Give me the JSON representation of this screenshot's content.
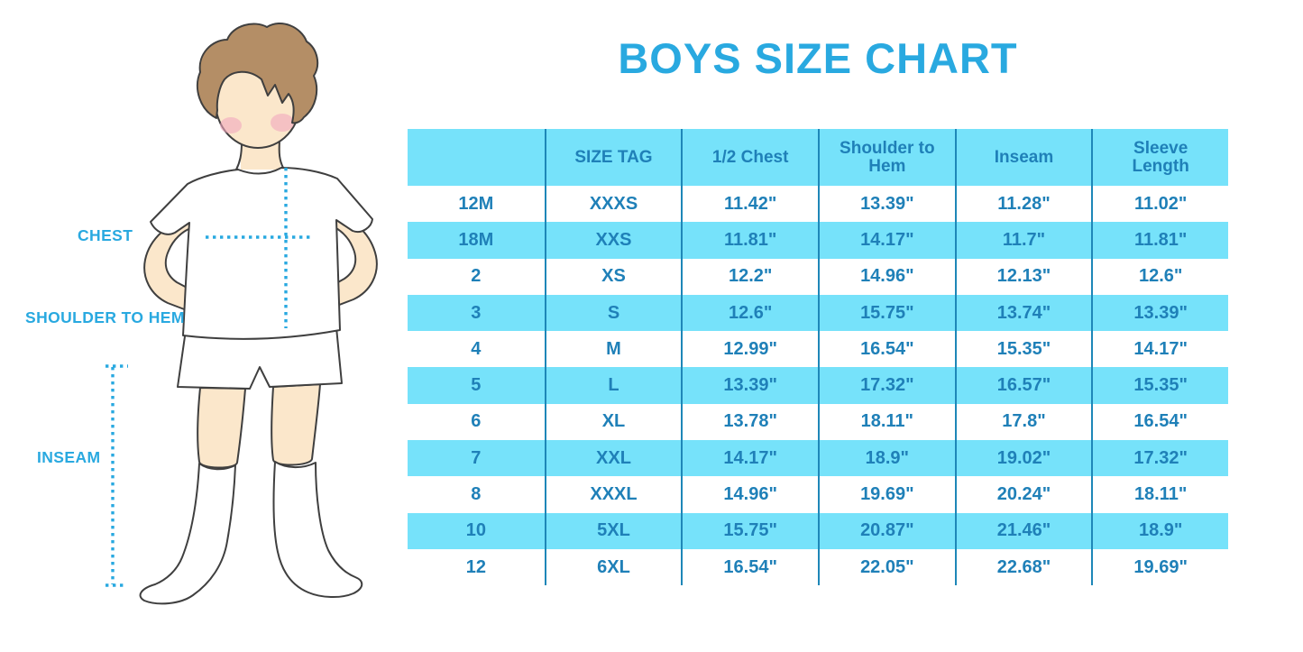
{
  "page": {
    "title": "BOYS SIZE CHART"
  },
  "figure": {
    "labels": {
      "chest": "CHEST",
      "shoulder_to_hem": "SHOULDER TO HEM",
      "inseam": "INSEAM"
    }
  },
  "colors": {
    "accent_blue": "#29A9E0",
    "table_text_blue": "#1F80B8",
    "stripe_cyan": "#76E2FA",
    "divider_blue": "#1E87B8",
    "hair_brown": "#B48E66",
    "skin_tone": "#FBE7CB",
    "blush_pink": "#F2A9BE"
  },
  "chart_data": {
    "type": "table",
    "title": "BOYS SIZE CHART",
    "legend_position": "none",
    "grid": "striped-rows",
    "columns": [
      "",
      "SIZE TAG",
      "1/2 Chest",
      "Shoulder to Hem",
      "Inseam",
      "Sleeve Length"
    ],
    "rows": [
      [
        "12M",
        "XXXS",
        "11.42\"",
        "13.39\"",
        "11.28\"",
        "11.02\""
      ],
      [
        "18M",
        "XXS",
        "11.81\"",
        "14.17\"",
        "11.7\"",
        "11.81\""
      ],
      [
        "2",
        "XS",
        "12.2\"",
        "14.96\"",
        "12.13\"",
        "12.6\""
      ],
      [
        "3",
        "S",
        "12.6\"",
        "15.75\"",
        "13.74\"",
        "13.39\""
      ],
      [
        "4",
        "M",
        "12.99\"",
        "16.54\"",
        "15.35\"",
        "14.17\""
      ],
      [
        "5",
        "L",
        "13.39\"",
        "17.32\"",
        "16.57\"",
        "15.35\""
      ],
      [
        "6",
        "XL",
        "13.78\"",
        "18.11\"",
        "17.8\"",
        "16.54\""
      ],
      [
        "7",
        "XXL",
        "14.17\"",
        "18.9\"",
        "19.02\"",
        "17.32\""
      ],
      [
        "8",
        "XXXL",
        "14.96\"",
        "19.69\"",
        "20.24\"",
        "18.11\""
      ],
      [
        "10",
        "5XL",
        "15.75\"",
        "20.87\"",
        "21.46\"",
        "18.9\""
      ],
      [
        "12",
        "6XL",
        "16.54\"",
        "22.05\"",
        "22.68\"",
        "19.69\""
      ]
    ]
  }
}
